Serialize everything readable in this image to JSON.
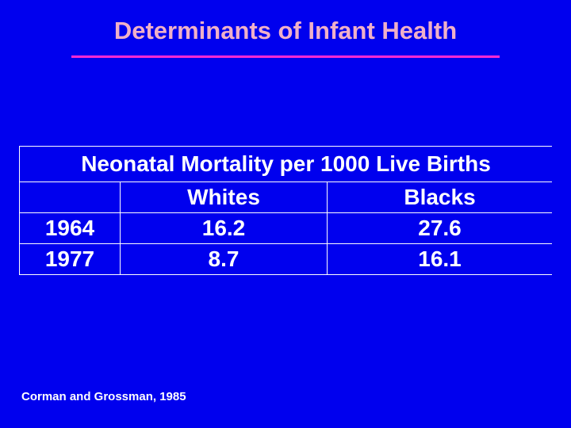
{
  "slide": {
    "title": "Determinants of Infant Health",
    "citation": "Corman and Grossman, 1985",
    "colors": {
      "background": "#0000ee",
      "title": "#f0b0c8",
      "title_rule": "#ff2ad4",
      "text": "#ffffff"
    }
  },
  "table": {
    "caption": "Neonatal Mortality per 1000 Live Births",
    "header": [
      "",
      "Whites",
      "Blacks"
    ],
    "rows": [
      [
        "1964",
        "16.2",
        "27.6"
      ],
      [
        "1977",
        "8.7",
        "16.1"
      ]
    ]
  }
}
